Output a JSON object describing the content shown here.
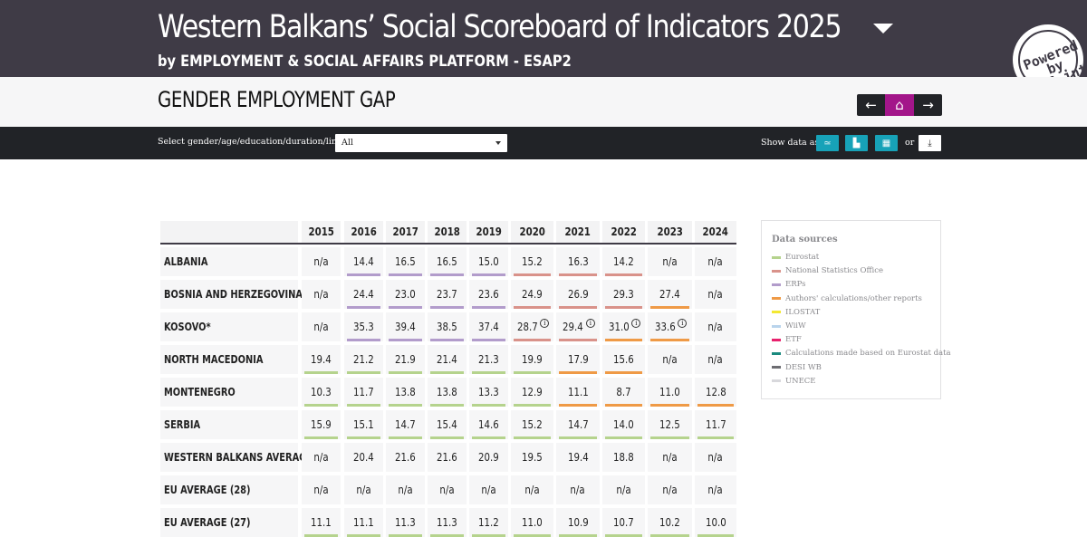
{
  "header": {
    "title": "Western Balkans’ Social Scoreboard of Indicators  2025",
    "subtitle": "by EMPLOYMENT & SOCIAL AFFAIRS PLATFORM - ESAP2",
    "stamp_text": "Powered by RCC.int"
  },
  "page": {
    "heading": "GENDER EMPLOYMENT GAP"
  },
  "nav": {
    "prev_glyph": "←",
    "home_glyph": "⌂",
    "next_glyph": "→"
  },
  "filter": {
    "label": "Select gender/age/education/duration/limitation:",
    "selected": "All"
  },
  "view": {
    "label": "Show data as:",
    "or_label": "or",
    "line_glyph": "≃",
    "bar_glyph": "▙",
    "table_glyph": "▦",
    "download_glyph": "⤓"
  },
  "table": {
    "years": [
      "2015",
      "2016",
      "2017",
      "2018",
      "2019",
      "2020",
      "2021",
      "2022",
      "2023",
      "2024"
    ],
    "rows": [
      {
        "label": "ALBANIA",
        "values": [
          "n/a",
          "14.4",
          "16.5",
          "16.5",
          "15.0",
          "15.2",
          "16.3",
          "14.2",
          "n/a",
          "n/a"
        ],
        "sources": [
          "",
          "erp",
          "erp",
          "erp",
          "erp",
          "nso",
          "nso",
          "nso",
          "",
          ""
        ],
        "info": [
          false,
          false,
          false,
          false,
          false,
          false,
          false,
          false,
          false,
          false
        ]
      },
      {
        "label": "BOSNIA AND HERZEGOVINA",
        "values": [
          "n/a",
          "24.4",
          "23.0",
          "23.7",
          "23.6",
          "24.9",
          "26.9",
          "29.3",
          "27.4",
          "n/a"
        ],
        "sources": [
          "",
          "erp",
          "erp",
          "erp",
          "erp",
          "nso",
          "nso",
          "nso",
          "auth",
          ""
        ],
        "info": [
          false,
          false,
          false,
          false,
          false,
          false,
          false,
          false,
          false,
          false
        ]
      },
      {
        "label": "KOSOVO*",
        "values": [
          "n/a",
          "35.3",
          "39.4",
          "38.5",
          "37.4",
          "28.7",
          "29.4",
          "31.0",
          "33.6",
          "n/a"
        ],
        "sources": [
          "",
          "erp",
          "erp",
          "erp",
          "erp",
          "nso",
          "nso",
          "auth",
          "auth",
          ""
        ],
        "info": [
          false,
          false,
          false,
          false,
          false,
          true,
          true,
          true,
          true,
          false
        ]
      },
      {
        "label": "NORTH MACEDONIA",
        "values": [
          "19.4",
          "21.2",
          "21.9",
          "21.4",
          "21.3",
          "19.9",
          "17.9",
          "15.6",
          "n/a",
          "n/a"
        ],
        "sources": [
          "euro",
          "euro",
          "euro",
          "euro",
          "euro",
          "euro",
          "auth",
          "auth",
          "",
          ""
        ],
        "info": [
          false,
          false,
          false,
          false,
          false,
          false,
          false,
          false,
          false,
          false
        ]
      },
      {
        "label": "MONTENEGRO",
        "values": [
          "10.3",
          "11.7",
          "13.8",
          "13.8",
          "13.3",
          "12.9",
          "11.1",
          "8.7",
          "11.0",
          "12.8"
        ],
        "sources": [
          "euro",
          "euro",
          "euro",
          "euro",
          "euro",
          "euro",
          "auth",
          "auth",
          "auth",
          "auth"
        ],
        "info": [
          false,
          false,
          false,
          false,
          false,
          false,
          false,
          false,
          false,
          false
        ]
      },
      {
        "label": "SERBIA",
        "values": [
          "15.9",
          "15.1",
          "14.7",
          "15.4",
          "14.6",
          "15.2",
          "14.7",
          "14.0",
          "12.5",
          "11.7"
        ],
        "sources": [
          "euro",
          "euro",
          "euro",
          "euro",
          "euro",
          "euro",
          "euro",
          "euro",
          "euro",
          "euro"
        ],
        "info": [
          false,
          false,
          false,
          false,
          false,
          false,
          false,
          false,
          false,
          false
        ]
      },
      {
        "label": "WESTERN BALKANS AVERAGE",
        "values": [
          "n/a",
          "20.4",
          "21.6",
          "21.6",
          "20.9",
          "19.5",
          "19.4",
          "18.8",
          "n/a",
          "n/a"
        ],
        "sources": [
          "",
          "",
          "",
          "",
          "",
          "",
          "",
          "",
          "",
          ""
        ],
        "info": [
          false,
          false,
          false,
          false,
          false,
          false,
          false,
          false,
          false,
          false
        ]
      },
      {
        "label": "EU AVERAGE (28)",
        "values": [
          "n/a",
          "n/a",
          "n/a",
          "n/a",
          "n/a",
          "n/a",
          "n/a",
          "n/a",
          "n/a",
          "n/a"
        ],
        "sources": [
          "",
          "",
          "",
          "",
          "",
          "",
          "",
          "",
          "",
          ""
        ],
        "info": [
          false,
          false,
          false,
          false,
          false,
          false,
          false,
          false,
          false,
          false
        ]
      },
      {
        "label": "EU AVERAGE (27)",
        "values": [
          "11.1",
          "11.1",
          "11.3",
          "11.3",
          "11.2",
          "11.0",
          "10.9",
          "10.7",
          "10.2",
          "10.0"
        ],
        "sources": [
          "euro",
          "euro",
          "euro",
          "euro",
          "euro",
          "euro",
          "euro",
          "euro",
          "euro",
          "euro"
        ],
        "info": [
          false,
          false,
          false,
          false,
          false,
          false,
          false,
          false,
          false,
          false
        ]
      }
    ]
  },
  "legend": {
    "title": "Data sources",
    "items": [
      {
        "key": "euro",
        "label": "Eurostat",
        "color": "#b5d38d"
      },
      {
        "key": "nso",
        "label": "National Statistics Office",
        "color": "#d9928a"
      },
      {
        "key": "erp",
        "label": "ERPs",
        "color": "#b29ccb"
      },
      {
        "key": "auth",
        "label": "Authors' calculations/other reports",
        "color": "#ef9a46"
      },
      {
        "key": "ilo",
        "label": "ILOSTAT",
        "color": "#f3e832"
      },
      {
        "key": "wiiw",
        "label": "WiiW",
        "color": "#b9d4ec"
      },
      {
        "key": "etf",
        "label": "ETF",
        "color": "#e8216d"
      },
      {
        "key": "calc",
        "label": "Calculations made based on Eurostat data",
        "color": "#1a8a7e"
      },
      {
        "key": "desi",
        "label": "DESI WB",
        "color": "#6d6d72"
      },
      {
        "key": "unece",
        "label": "UNECE",
        "color": "#d8d8dc"
      }
    ]
  }
}
